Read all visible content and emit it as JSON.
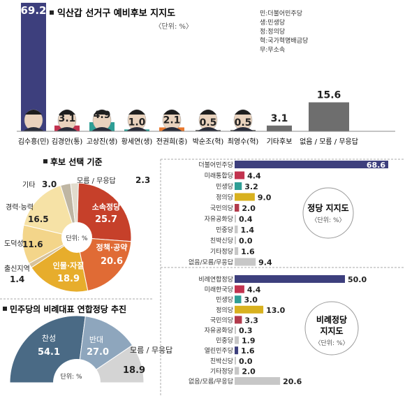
{
  "colors": {
    "minju": "#3d3f7d",
    "tonghap": "#c2334f",
    "minsaeng": "#2f9e95",
    "jeongui": "#d8b11f",
    "kukmin": "#b23a4b",
    "gray": "#c7c7c7",
    "darkgray": "#6e6e6e",
    "pie_orange_dark": "#c6402a",
    "pie_orange": "#e06b35",
    "pie_gold": "#e7ad2c",
    "pie_cream": "#f3d58a",
    "pie_tan": "#d7c29a",
    "pie2_blue": "#4a6a85",
    "pie2_light": "#8ea6bd",
    "pie2_gray": "#d4d4d4"
  },
  "chart_data": [
    {
      "type": "bar",
      "title": "익산갑 선거구 예비후보 지지도",
      "unit": "〈단위: %〉",
      "categories": [
        "김수흥(민)",
        "김경안(통)",
        "고상진(생)",
        "황세연(생)",
        "전권희(중)",
        "박순조(혁)",
        "최영수(혁)",
        "기타후보",
        "없음 / 모름 / 무응답"
      ],
      "values": [
        69.2,
        3.1,
        4.9,
        1.0,
        2.1,
        0.5,
        0.5,
        3.1,
        15.6
      ],
      "value_labels": [
        "69.2",
        "3.1",
        "4.9",
        "1.0",
        "2.1",
        "0.5",
        "0.5",
        "3.1",
        "15.6"
      ],
      "legend": [
        "민:더불어민주당",
        "생:민생당",
        "정:정의당",
        "혁:국가혁명배금당",
        "무:무소속"
      ]
    },
    {
      "type": "pie",
      "title": "후보 선택 기준",
      "unit": "단위: %",
      "slices": [
        {
          "label": "소속정당",
          "value": 25.7
        },
        {
          "label": "정책·공약",
          "value": 20.6
        },
        {
          "label": "인물·자질",
          "value": 18.9
        },
        {
          "label": "출신지역",
          "value": 1.4
        },
        {
          "label": "도덕성",
          "value": 11.6
        },
        {
          "label": "경력·능력",
          "value": 16.5
        },
        {
          "label": "기타",
          "value": 3.0
        },
        {
          "label": "모름 / 무응답",
          "value": 2.3
        }
      ],
      "value_labels": [
        "25.7",
        "20.6",
        "18.9",
        "1.4",
        "11.6",
        "16.5",
        "3.0",
        "2.3"
      ]
    },
    {
      "type": "bar",
      "title": "정당 지지도",
      "unit": "〈단위: %〉",
      "categories": [
        "더불어민주당",
        "미래통합당",
        "민생당",
        "정의당",
        "국민의당",
        "자유공화당",
        "민중당",
        "친박신당",
        "기타정당",
        "없음/모름/무응답"
      ],
      "values": [
        68.6,
        4.4,
        3.2,
        9.0,
        2.0,
        0.4,
        1.4,
        0.0,
        1.6,
        9.4
      ],
      "value_labels": [
        "68.6",
        "4.4",
        "3.2",
        "9.0",
        "2.0",
        "0.4",
        "1.4",
        "0.0",
        "1.6",
        "9.4"
      ]
    },
    {
      "type": "pie",
      "title": "민주당의 비례대표 연합정당 추진",
      "unit": "단위: %",
      "slices": [
        {
          "label": "찬성",
          "value": 54.1
        },
        {
          "label": "반대",
          "value": 27.0
        },
        {
          "label": "모름 / 무응답",
          "value": 18.9
        }
      ],
      "value_labels": [
        "54.1",
        "27.0",
        "18.9"
      ]
    },
    {
      "type": "bar",
      "title": "비례정당 지지도",
      "unit": "〈단위: %〉",
      "categories": [
        "비례연합정당",
        "미래한국당",
        "민생당",
        "정의당",
        "국민의당",
        "자유공화당",
        "민중당",
        "열린민주당",
        "친박신당",
        "기타정당",
        "없음/모름/무응답"
      ],
      "values": [
        50.0,
        4.4,
        3.0,
        13.0,
        3.3,
        0.3,
        1.9,
        1.6,
        0.0,
        2.0,
        20.6
      ],
      "value_labels": [
        "50.0",
        "4.4",
        "3.0",
        "13.0",
        "3.3",
        "0.3",
        "1.9",
        "1.6",
        "0.0",
        "2.0",
        "20.6"
      ]
    }
  ]
}
